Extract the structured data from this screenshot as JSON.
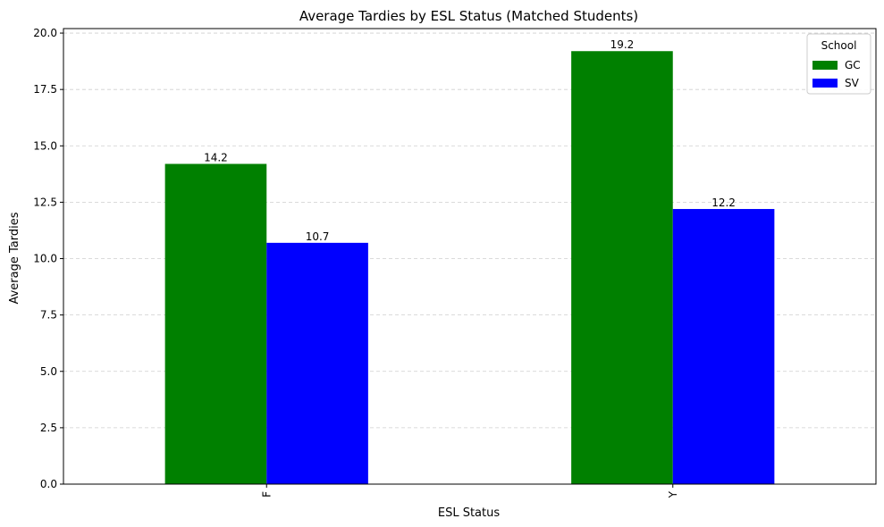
{
  "chart_data": {
    "type": "bar",
    "title": "Average Tardies by ESL Status (Matched Students)",
    "xlabel": "ESL Status",
    "ylabel": "Average Tardies",
    "categories": [
      "F",
      "Y"
    ],
    "series": [
      {
        "name": "GC",
        "values": [
          14.2,
          19.2
        ],
        "color": "#008000"
      },
      {
        "name": "SV",
        "values": [
          10.7,
          12.2
        ],
        "color": "#0000ff"
      }
    ],
    "data_labels": [
      [
        "14.2",
        "19.2"
      ],
      [
        "10.7",
        "12.2"
      ]
    ],
    "ylim": [
      0,
      20.2
    ],
    "yticks": [
      0.0,
      2.5,
      5.0,
      7.5,
      10.0,
      12.5,
      15.0,
      17.5,
      20.0
    ],
    "ytick_labels": [
      "0.0",
      "2.5",
      "5.0",
      "7.5",
      "10.0",
      "12.5",
      "15.0",
      "17.5",
      "20.0"
    ],
    "grid": "y",
    "legend": {
      "title": "School",
      "placement": "top-right"
    }
  }
}
